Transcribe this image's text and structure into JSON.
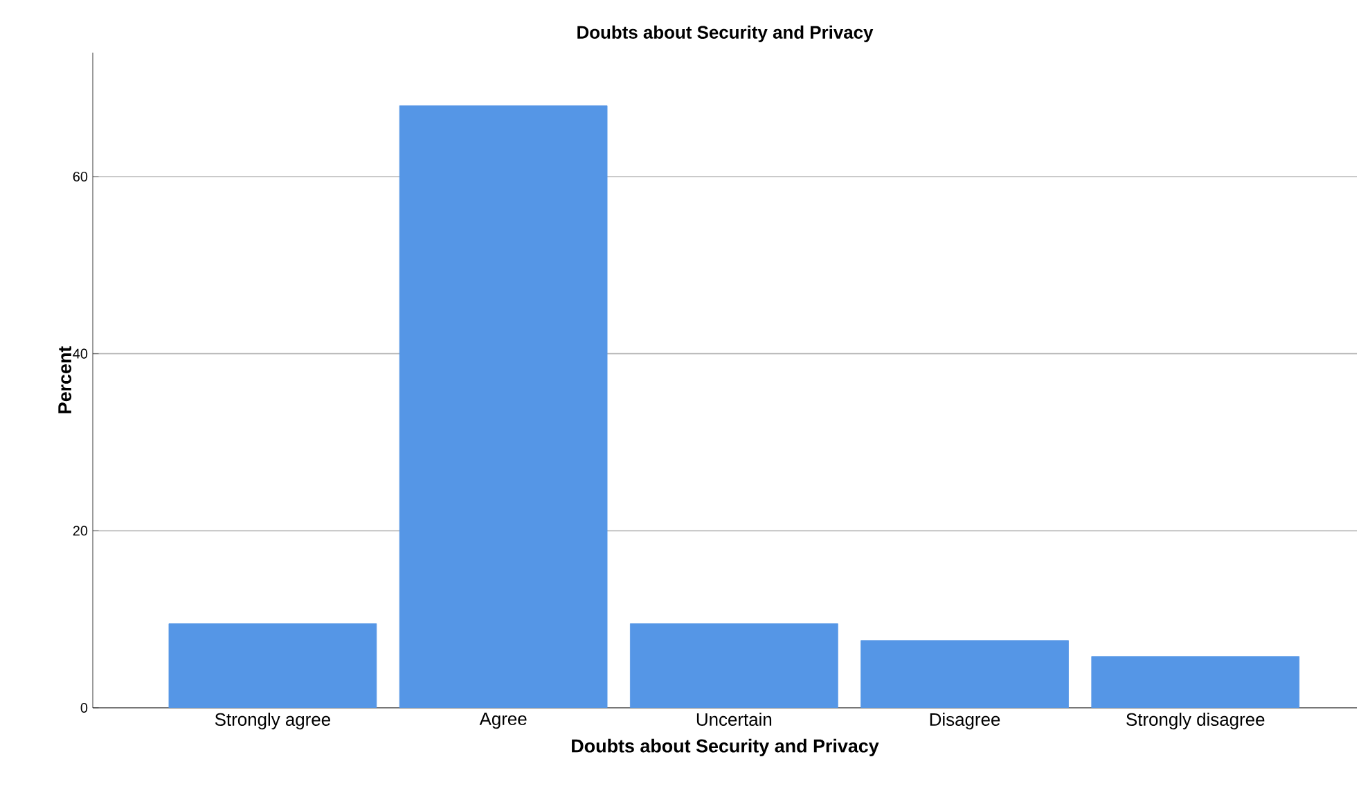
{
  "chart_data": {
    "type": "bar",
    "title": "Doubts about Security and Privacy",
    "xlabel": "Doubts about Security and Privacy",
    "ylabel": "Percent",
    "categories": [
      "Strongly agree",
      "Agree",
      "Uncertain",
      "Disagree",
      "Strongly disagree"
    ],
    "values": [
      9.5,
      68,
      9.5,
      7.6,
      5.8
    ],
    "color": "#5596e6",
    "ylim": [
      0,
      74
    ],
    "yticks": [
      0,
      20,
      40,
      60
    ],
    "grid": "y"
  }
}
